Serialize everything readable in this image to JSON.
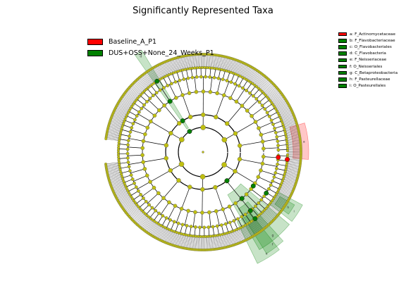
{
  "title": "Significantly Represented Taxa",
  "colors": {
    "Baseline_A_P1": "#ff0000",
    "DUS+OSS+None_24_Weeks_P1": "#008000",
    "neutral": "#bfbf10"
  },
  "legend": [
    {
      "label": "Baseline_A_P1",
      "color": "#ff0000"
    },
    {
      "label": "DUS+OSS+None_24_Weeks_P1",
      "color": "#008000"
    }
  ],
  "taxa_legend": [
    {
      "label": "a: F_Actinomycetaceae",
      "color": "#ff0000"
    },
    {
      "label": "b: F_Flavobacteriaceae",
      "color": "#008000"
    },
    {
      "label": "c: O_Flavobacteriales",
      "color": "#008000"
    },
    {
      "label": "d: C_Flavobacteria",
      "color": "#008000"
    },
    {
      "label": "e: F_Neisseriaceae",
      "color": "#008000"
    },
    {
      "label": "f: O_Neisseriales",
      "color": "#008000"
    },
    {
      "label": "g: C_Betaproteobacteria",
      "color": "#008000"
    },
    {
      "label": "h: F_Pasteurellaceae",
      "color": "#008000"
    },
    {
      "label": "i: O_Pasteurellales",
      "color": "#008000"
    }
  ],
  "chart_data": {
    "type": "cladogram",
    "title": "Significantly Represented Taxa",
    "ring_levels": 6,
    "groups": [
      "Baseline_A_P1",
      "DUS+OSS+None_24_Weeks_P1"
    ],
    "highlighted_clades": [
      {
        "letter": "a",
        "taxon": "F_Actinomycetaceae",
        "group": "Baseline_A_P1"
      },
      {
        "letter": "b",
        "taxon": "F_Flavobacteriaceae",
        "group": "DUS+OSS+None_24_Weeks_P1"
      },
      {
        "letter": "c",
        "taxon": "O_Flavobacteriales",
        "group": "DUS+OSS+None_24_Weeks_P1"
      },
      {
        "letter": "d",
        "taxon": "C_Flavobacteria",
        "group": "DUS+OSS+None_24_Weeks_P1"
      },
      {
        "letter": "e",
        "taxon": "F_Neisseriaceae",
        "group": "DUS+OSS+None_24_Weeks_P1"
      },
      {
        "letter": "f",
        "taxon": "O_Neisseriales",
        "group": "DUS+OSS+None_24_Weeks_P1"
      },
      {
        "letter": "g",
        "taxon": "C_Betaproteobacteria",
        "group": "DUS+OSS+None_24_Weeks_P1"
      },
      {
        "letter": "h",
        "taxon": "F_Pasteurellaceae",
        "group": "DUS+OSS+None_24_Weeks_P1"
      },
      {
        "letter": "i",
        "taxon": "O_Pasteurellales",
        "group": "DUS+OSS+None_24_Weeks_P1"
      }
    ]
  }
}
